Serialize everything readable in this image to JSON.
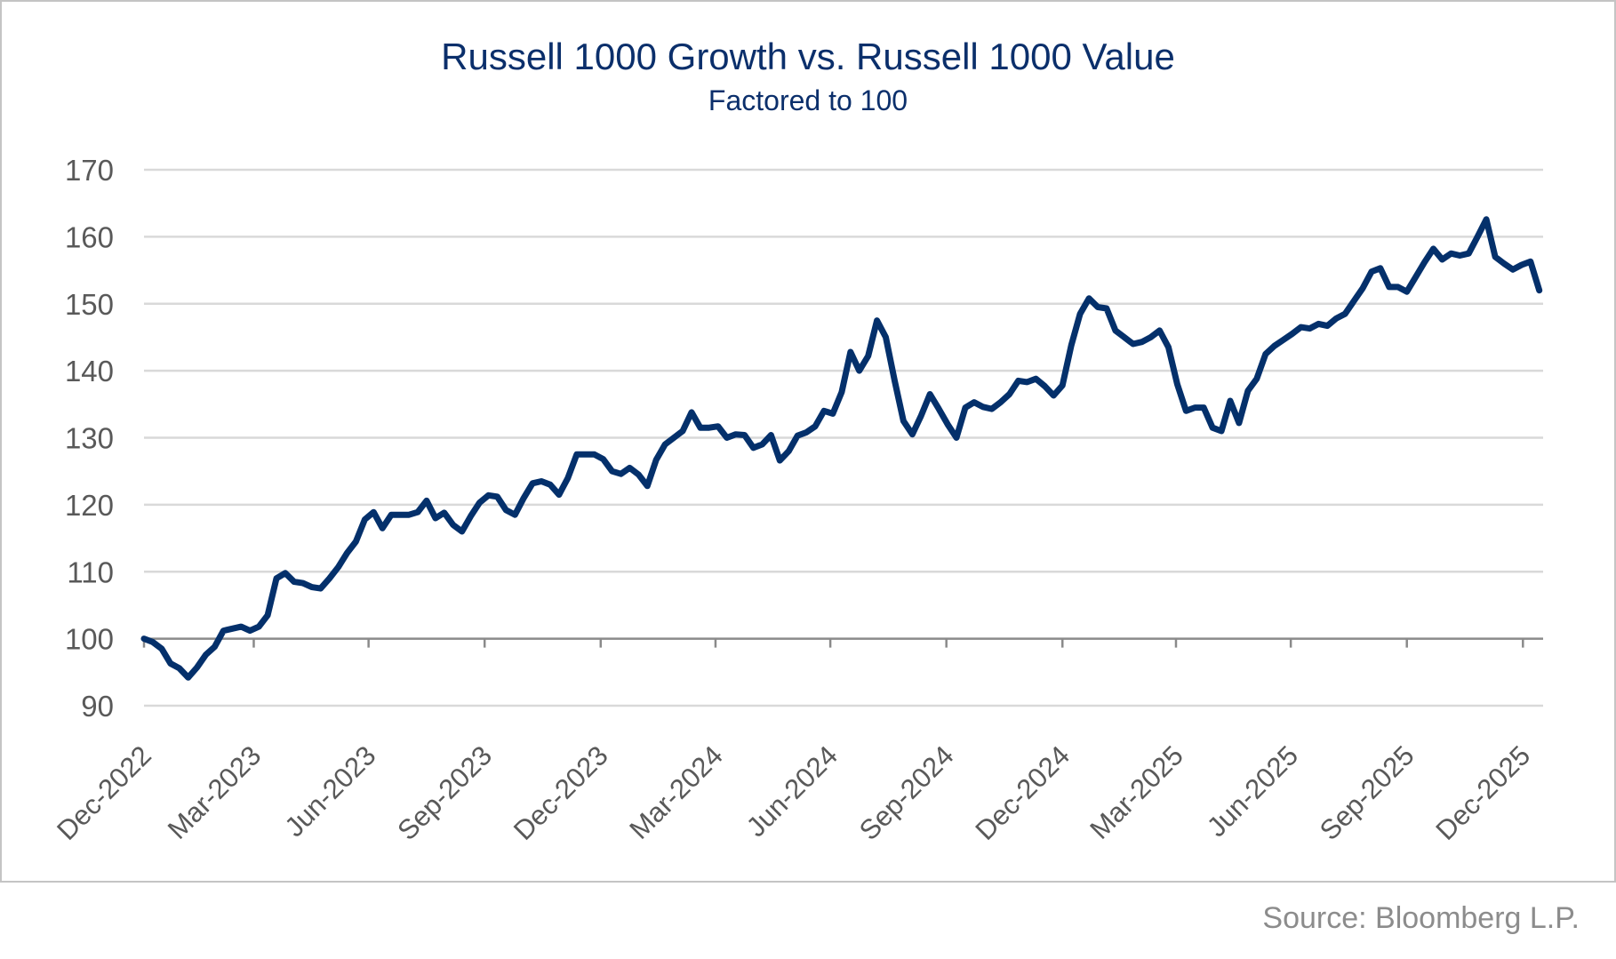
{
  "chart_data": {
    "type": "line",
    "title": "Russell 1000 Growth vs. Russell 1000 Value",
    "subtitle": "Factored to 100",
    "source": "Source: Bloomberg L.P.",
    "ylim": [
      90,
      170
    ],
    "yticks": [
      "170",
      "160",
      "150",
      "140",
      "130",
      "120",
      "110",
      "100",
      "90"
    ],
    "xlim": [
      "2022-12-30",
      "2026-01-12"
    ],
    "xticks": [
      "Dec-2022",
      "Mar-2023",
      "Jun-2023",
      "Sep-2023",
      "Dec-2023",
      "Mar-2024",
      "Jun-2024",
      "Sep-2024",
      "Dec-2024",
      "Mar-2025",
      "Jun-2025",
      "Sep-2025",
      "Dec-2025"
    ],
    "grid": true,
    "baseline": 100,
    "line_color": "#04306b",
    "x": [
      "2022-12-30",
      "2023-01-06",
      "2023-01-13",
      "2023-01-20",
      "2023-01-27",
      "2023-02-03",
      "2023-02-10",
      "2023-02-17",
      "2023-02-24",
      "2023-03-03",
      "2023-03-10",
      "2023-03-17",
      "2023-03-24",
      "2023-03-31",
      "2023-04-07",
      "2023-04-14",
      "2023-04-21",
      "2023-04-28",
      "2023-05-05",
      "2023-05-12",
      "2023-05-19",
      "2023-05-26",
      "2023-06-02",
      "2023-06-09",
      "2023-06-16",
      "2023-06-23",
      "2023-06-30",
      "2023-07-07",
      "2023-07-14",
      "2023-07-21",
      "2023-07-28",
      "2023-08-04",
      "2023-08-11",
      "2023-08-18",
      "2023-08-25",
      "2023-09-01",
      "2023-09-08",
      "2023-09-15",
      "2023-09-22",
      "2023-09-29",
      "2023-10-06",
      "2023-10-13",
      "2023-10-20",
      "2023-10-27",
      "2023-11-03",
      "2023-11-10",
      "2023-11-17",
      "2023-11-24",
      "2023-12-01",
      "2023-12-08",
      "2023-12-15",
      "2023-12-22",
      "2023-12-29",
      "2024-01-05",
      "2024-01-12",
      "2024-01-19",
      "2024-01-26",
      "2024-02-02",
      "2024-02-09",
      "2024-02-16",
      "2024-02-23",
      "2024-03-01",
      "2024-03-08",
      "2024-03-15",
      "2024-03-22",
      "2024-03-29",
      "2024-04-05",
      "2024-04-12",
      "2024-04-19",
      "2024-04-26",
      "2024-05-03",
      "2024-05-10",
      "2024-05-17",
      "2024-05-24",
      "2024-05-31",
      "2024-06-07",
      "2024-06-14",
      "2024-06-21",
      "2024-06-28",
      "2024-07-05",
      "2024-07-12",
      "2024-07-19",
      "2024-07-26",
      "2024-08-02",
      "2024-08-09",
      "2024-08-16",
      "2024-08-23",
      "2024-08-30",
      "2024-09-06",
      "2024-09-13",
      "2024-09-20",
      "2024-09-27",
      "2024-10-04",
      "2024-10-11",
      "2024-10-18",
      "2024-10-25",
      "2024-11-01",
      "2024-11-08",
      "2024-11-15",
      "2024-11-22",
      "2024-11-29",
      "2024-12-06",
      "2024-12-13",
      "2024-12-20",
      "2024-12-27",
      "2025-01-03",
      "2025-01-10",
      "2025-01-17",
      "2025-01-24",
      "2025-01-31",
      "2025-02-07",
      "2025-02-14",
      "2025-02-21",
      "2025-02-28",
      "2025-03-07",
      "2025-03-14",
      "2025-03-21",
      "2025-03-28",
      "2025-04-04",
      "2025-04-11",
      "2025-04-18",
      "2025-04-25",
      "2025-05-02",
      "2025-05-09",
      "2025-05-16",
      "2025-05-23",
      "2025-05-30",
      "2025-06-06",
      "2025-06-13",
      "2025-06-20",
      "2025-06-27",
      "2025-07-04",
      "2025-07-11",
      "2025-07-18",
      "2025-07-25",
      "2025-08-01",
      "2025-08-08",
      "2025-08-15",
      "2025-08-22",
      "2025-08-29",
      "2025-09-05",
      "2025-09-12",
      "2025-09-19",
      "2025-09-26",
      "2025-10-03",
      "2025-10-10",
      "2025-10-17",
      "2025-10-24",
      "2025-10-31",
      "2025-11-07",
      "2025-11-14",
      "2025-11-21",
      "2025-11-28",
      "2025-12-05",
      "2025-12-12",
      "2025-12-19",
      "2025-12-26",
      "2026-01-02",
      "2026-01-09"
    ],
    "values": [
      100,
      99.5,
      98.5,
      96.3,
      95.6,
      94.2,
      95.7,
      97.6,
      98.8,
      101.2,
      101.5,
      101.8,
      101.2,
      101.8,
      103.5,
      109,
      109.8,
      108.5,
      108.3,
      107.7,
      107.5,
      109,
      110.7,
      112.8,
      114.5,
      117.8,
      118.9,
      116.5,
      118.5,
      118.5,
      118.5,
      118.9,
      120.6,
      118,
      118.8,
      117,
      116,
      118.3,
      120.3,
      121.4,
      121.2,
      119.2,
      118.5,
      121,
      123.2,
      123.5,
      123,
      121.5,
      124,
      127.5,
      127.5,
      127.5,
      126.8,
      125,
      124.6,
      125.5,
      124.5,
      122.8,
      126.7,
      129,
      130,
      131,
      133.8,
      131.5,
      131.5,
      131.7,
      130,
      130.5,
      130.4,
      128.5,
      129,
      130.4,
      126.6,
      128,
      130.3,
      130.8,
      131.7,
      134,
      133.6,
      136.8,
      142.8,
      140,
      142.2,
      147.5,
      145,
      138.5,
      132.5,
      130.5,
      133.3,
      136.5,
      134.3,
      132,
      130,
      134.5,
      135.3,
      134.6,
      134.3,
      135.3,
      136.5,
      138.5,
      138.3,
      138.8,
      137.7,
      136.3,
      137.8,
      143.8,
      148.5,
      150.8,
      149.5,
      149.3,
      146,
      145,
      144,
      144.3,
      145,
      146,
      143.5,
      138,
      134,
      134.5,
      134.5,
      131.5,
      131,
      135.5,
      132.2,
      137,
      138.8,
      142.5,
      143.7,
      144.6,
      145.5,
      146.5,
      146.3,
      147,
      146.7,
      147.8,
      148.5,
      150.4,
      152.3,
      154.8,
      155.3,
      152.5,
      152.5,
      151.8,
      154,
      156.2,
      158.2,
      156.6,
      157.5,
      157.2,
      157.5,
      160,
      162.6,
      157,
      156,
      155.1,
      155.8,
      156.3,
      152
    ]
  }
}
